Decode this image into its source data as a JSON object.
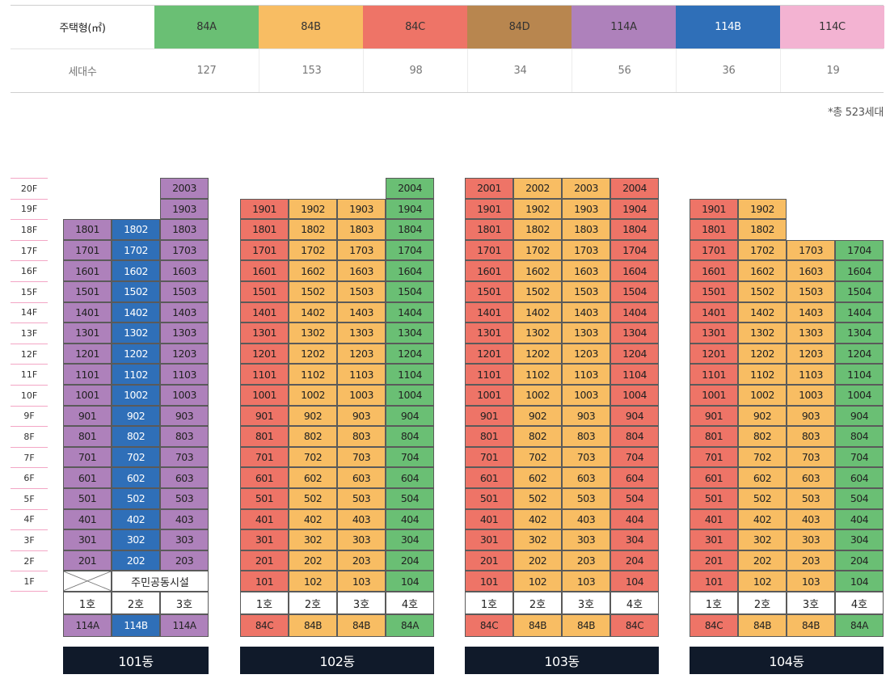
{
  "colors": {
    "84A": "#6abf74",
    "84B": "#f8bd63",
    "84C": "#ee7467",
    "84D": "#b8864f",
    "114A": "#ae81bb",
    "114B": "#2f6fb8",
    "114C": "#f3b3d2"
  },
  "light_text_types": [
    "114B"
  ],
  "summary": {
    "type_label": "주택형(㎡)",
    "count_label": "세대수",
    "types": [
      {
        "name": "84A",
        "count": "127"
      },
      {
        "name": "84B",
        "count": "153"
      },
      {
        "name": "84C",
        "count": "98"
      },
      {
        "name": "84D",
        "count": "34"
      },
      {
        "name": "114A",
        "count": "56"
      },
      {
        "name": "114B",
        "count": "36"
      },
      {
        "name": "114C",
        "count": "19"
      }
    ],
    "total_note": "*총 523세대"
  },
  "floors": [
    "20F",
    "19F",
    "18F",
    "17F",
    "16F",
    "15F",
    "14F",
    "13F",
    "12F",
    "11F",
    "10F",
    "9F",
    "8F",
    "7F",
    "6F",
    "5F",
    "4F",
    "3F",
    "2F",
    "1F"
  ],
  "buildings": [
    {
      "name": "101동",
      "lines": [
        "1호",
        "2호",
        "3호"
      ],
      "line_types": [
        "114A",
        "114B",
        "114A"
      ],
      "top_floors": [
        18,
        18,
        20
      ],
      "first_floor": {
        "facility": "주민공동시설"
      }
    },
    {
      "name": "102동",
      "lines": [
        "1호",
        "2호",
        "3호",
        "4호"
      ],
      "line_types": [
        "84C",
        "84B",
        "84B",
        "84A"
      ],
      "top_floors": [
        19,
        19,
        19,
        20
      ],
      "first_floor": null
    },
    {
      "name": "103동",
      "lines": [
        "1호",
        "2호",
        "3호",
        "4호"
      ],
      "line_types": [
        "84C",
        "84B",
        "84B",
        "84C"
      ],
      "top_floors": [
        20,
        20,
        20,
        20
      ],
      "first_floor": null
    },
    {
      "name": "104동",
      "lines": [
        "1호",
        "2호",
        "3호",
        "4호"
      ],
      "line_types": [
        "84C",
        "84B",
        "84B",
        "84A"
      ],
      "top_floors": [
        19,
        19,
        17,
        17
      ],
      "first_floor": null
    }
  ]
}
